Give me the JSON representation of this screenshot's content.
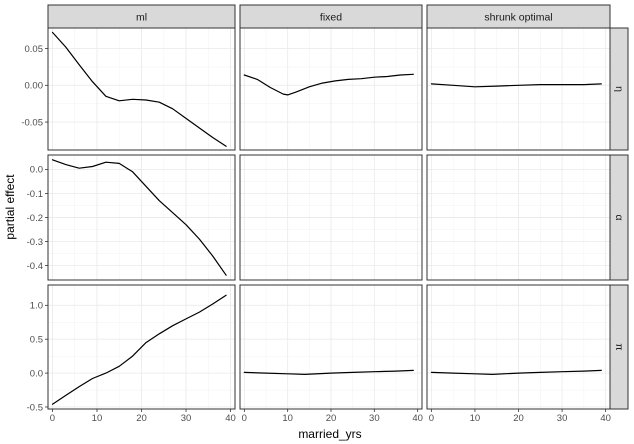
{
  "chart_data": {
    "type": "line",
    "xlabel": "married_yrs",
    "ylabel": "partial effect",
    "columns": [
      "ml",
      "fixed",
      "shrunk optimal"
    ],
    "rows": [
      "η",
      "α",
      "π"
    ],
    "x_ticks": [
      0,
      10,
      20,
      30,
      40
    ],
    "xlim": [
      -1,
      41
    ],
    "grid": true,
    "row_axes": [
      {
        "ylim": [
          -0.088,
          0.078
        ],
        "ticks": [
          -0.05,
          0,
          0.05
        ],
        "tick_labels": [
          "-0.05",
          "0.00",
          "0.05"
        ]
      },
      {
        "ylim": [
          -0.46,
          0.06
        ],
        "ticks": [
          -0.4,
          -0.3,
          -0.2,
          -0.1,
          0
        ],
        "tick_labels": [
          "-0.4",
          "-0.3",
          "-0.2",
          "-0.1",
          "0.0"
        ]
      },
      {
        "ylim": [
          -0.53,
          1.3
        ],
        "ticks": [
          -0.5,
          0,
          0.5,
          1
        ],
        "tick_labels": [
          "-0.5",
          "0.0",
          "0.5",
          "1.0"
        ]
      }
    ],
    "panels": [
      {
        "row": 0,
        "col": 0,
        "x": [
          0,
          3,
          6,
          9,
          12,
          15,
          18,
          21,
          24,
          27,
          30,
          33,
          36,
          39
        ],
        "y": [
          0.072,
          0.052,
          0.028,
          0.005,
          -0.015,
          -0.021,
          -0.019,
          -0.02,
          -0.023,
          -0.032,
          -0.045,
          -0.058,
          -0.071,
          -0.083
        ]
      },
      {
        "row": 0,
        "col": 1,
        "x": [
          0,
          3,
          6,
          9,
          10,
          12,
          15,
          18,
          21,
          24,
          27,
          30,
          33,
          36,
          39
        ],
        "y": [
          0.014,
          0.008,
          -0.003,
          -0.012,
          -0.013,
          -0.009,
          -0.002,
          0.003,
          0.006,
          0.008,
          0.009,
          0.011,
          0.012,
          0.014,
          0.015
        ]
      },
      {
        "row": 0,
        "col": 2,
        "x": [
          0,
          5,
          10,
          15,
          20,
          25,
          30,
          35,
          39
        ],
        "y": [
          0.002,
          0.0,
          -0.002,
          -0.001,
          0.0,
          0.001,
          0.001,
          0.001,
          0.002
        ]
      },
      {
        "row": 1,
        "col": 0,
        "x": [
          0,
          3,
          6,
          9,
          12,
          15,
          18,
          21,
          24,
          27,
          30,
          33,
          36,
          39
        ],
        "y": [
          0.04,
          0.02,
          0.005,
          0.012,
          0.03,
          0.025,
          -0.01,
          -0.07,
          -0.13,
          -0.18,
          -0.23,
          -0.29,
          -0.36,
          -0.44
        ]
      },
      {
        "row": 2,
        "col": 0,
        "x": [
          0,
          3,
          6,
          9,
          12,
          15,
          18,
          21,
          24,
          27,
          30,
          33,
          36,
          39
        ],
        "y": [
          -0.46,
          -0.33,
          -0.2,
          -0.08,
          0.0,
          0.1,
          0.25,
          0.45,
          0.58,
          0.7,
          0.8,
          0.9,
          1.02,
          1.15
        ]
      },
      {
        "row": 2,
        "col": 1,
        "x": [
          0,
          5,
          10,
          14,
          20,
          25,
          30,
          35,
          39
        ],
        "y": [
          0.01,
          0.0,
          -0.01,
          -0.02,
          0.0,
          0.01,
          0.02,
          0.03,
          0.04
        ]
      },
      {
        "row": 2,
        "col": 2,
        "x": [
          0,
          5,
          10,
          14,
          20,
          25,
          30,
          35,
          39
        ],
        "y": [
          0.01,
          0.0,
          -0.01,
          -0.02,
          0.0,
          0.01,
          0.02,
          0.03,
          0.04
        ]
      }
    ]
  }
}
